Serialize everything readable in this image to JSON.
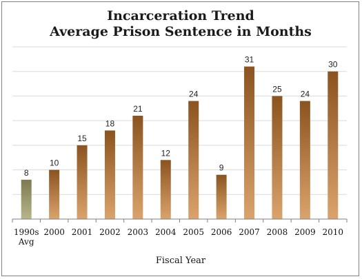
{
  "chart_data": {
    "type": "bar",
    "title_line1": "Incarceration Trend",
    "title_line2": "Average Prison Sentence in Months",
    "xlabel": "Fiscal Year",
    "ylabel": "",
    "ylim": [
      0,
      35
    ],
    "grid": true,
    "categories": [
      [
        "1990s",
        "Avg"
      ],
      [
        "2000"
      ],
      [
        "2001"
      ],
      [
        "2002"
      ],
      [
        "2003"
      ],
      [
        "2004"
      ],
      [
        "2005"
      ],
      [
        "2006"
      ],
      [
        "2007"
      ],
      [
        "2008"
      ],
      [
        "2009"
      ],
      [
        "2010"
      ]
    ],
    "values": [
      8,
      10,
      15,
      18,
      21,
      12,
      24,
      9,
      31,
      25,
      24,
      30
    ],
    "colors": {
      "first_bar_top": "#7d7a4f",
      "first_bar_bottom": "#b7b58a",
      "bar_top": "#8b531f",
      "bar_bottom": "#dba36c",
      "grid": "#d9d9d9",
      "axis": "#7f7f7f"
    }
  }
}
